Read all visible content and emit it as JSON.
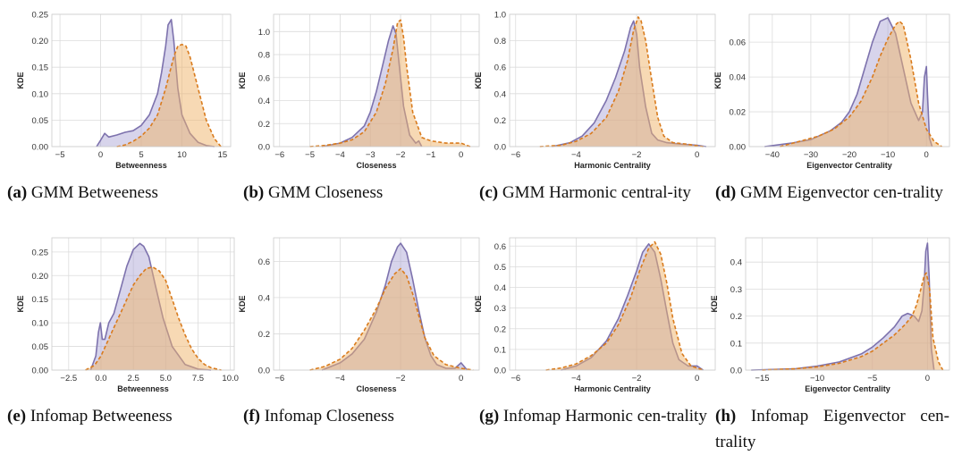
{
  "colors": {
    "series_a_line": "#7d72ad",
    "series_a_fill": "#a79fd3",
    "series_b_line": "#d97b1d",
    "series_b_fill": "#f0b46a",
    "grid": "#dcdcdc"
  },
  "captions": [
    {
      "tag": "(a)",
      "text": " GMM Betweeness"
    },
    {
      "tag": "(b)",
      "text": " GMM Closeness"
    },
    {
      "tag": "(c)",
      "text": " GMM Harmonic central-ity"
    },
    {
      "tag": "(d)",
      "text": " GMM Eigenvector cen-trality"
    },
    {
      "tag": "(e)",
      "text": " Infomap Betweeness"
    },
    {
      "tag": "(f)",
      "text": " Infomap Closeness"
    },
    {
      "tag": "(g)",
      "text": " Infomap Harmonic cen-trality"
    },
    {
      "tag": "(h)",
      "text": " Infomap Eigenvector cen-trality"
    }
  ],
  "chart_data": [
    {
      "type": "area",
      "xlabel": "Betweenness",
      "ylabel": "KDE",
      "xlim": [
        -6,
        16
      ],
      "ylim": [
        0,
        0.25
      ],
      "xticks": [
        -5,
        0,
        5,
        10,
        15
      ],
      "xticklabels": [
        "−5",
        "0",
        "5",
        "10",
        "15"
      ],
      "yticks": [
        0,
        0.05,
        0.1,
        0.15,
        0.2,
        0.25
      ],
      "yticklabels": [
        "0.00",
        "0.05",
        "0.10",
        "0.15",
        "0.20",
        "0.25"
      ],
      "series": [
        {
          "style": "solid",
          "x": [
            -0.5,
            0,
            0.5,
            1,
            2,
            3,
            4,
            5,
            6,
            7,
            7.5,
            8,
            8.3,
            8.7,
            9,
            9.5,
            10,
            11,
            12,
            13,
            14
          ],
          "y": [
            0,
            0.012,
            0.025,
            0.018,
            0.022,
            0.027,
            0.03,
            0.04,
            0.06,
            0.1,
            0.14,
            0.19,
            0.23,
            0.24,
            0.2,
            0.11,
            0.06,
            0.025,
            0.008,
            0.002,
            0
          ]
        },
        {
          "style": "dashed",
          "x": [
            2,
            3,
            4,
            5,
            6,
            7,
            8,
            9,
            9.5,
            10,
            10.5,
            11,
            12,
            13,
            14,
            14.8
          ],
          "y": [
            0,
            0.003,
            0.01,
            0.02,
            0.035,
            0.06,
            0.11,
            0.17,
            0.19,
            0.193,
            0.19,
            0.17,
            0.11,
            0.05,
            0.015,
            0
          ]
        }
      ]
    },
    {
      "type": "area",
      "xlabel": "Closeness",
      "ylabel": "KDE",
      "xlim": [
        -6.2,
        0.6
      ],
      "ylim": [
        0,
        1.15
      ],
      "xticks": [
        -6,
        -5,
        -4,
        -3,
        -2,
        -1,
        0
      ],
      "xticklabels": [
        "−6",
        "−5",
        "−4",
        "−3",
        "−2",
        "−1",
        "0"
      ],
      "yticks": [
        0,
        0.2,
        0.4,
        0.6,
        0.8,
        1.0
      ],
      "yticklabels": [
        "0.0",
        "0.2",
        "0.4",
        "0.6",
        "0.8",
        "1.0"
      ],
      "series": [
        {
          "style": "solid",
          "x": [
            -4.6,
            -4,
            -3.6,
            -3.2,
            -3,
            -2.8,
            -2.6,
            -2.4,
            -2.25,
            -2.15,
            -2.05,
            -1.9,
            -1.7,
            -1.5,
            -1.4,
            -1.3
          ],
          "y": [
            0,
            0.03,
            0.08,
            0.18,
            0.3,
            0.48,
            0.7,
            0.92,
            1.05,
            0.98,
            0.72,
            0.35,
            0.1,
            0.03,
            0.05,
            0
          ]
        },
        {
          "style": "dashed",
          "x": [
            -5,
            -4.5,
            -4,
            -3.6,
            -3.2,
            -2.8,
            -2.5,
            -2.25,
            -2.1,
            -2,
            -1.9,
            -1.8,
            -1.6,
            -1.3,
            -1,
            -0.5,
            0,
            0.3
          ],
          "y": [
            0,
            0.01,
            0.03,
            0.06,
            0.13,
            0.3,
            0.55,
            0.85,
            1.08,
            1.1,
            0.95,
            0.7,
            0.3,
            0.08,
            0.05,
            0.03,
            0.03,
            0
          ]
        }
      ]
    },
    {
      "type": "area",
      "xlabel": "Harmonic Centrality",
      "ylabel": "KDE",
      "xlim": [
        -6.2,
        0.6
      ],
      "ylim": [
        0,
        1.0
      ],
      "xticks": [
        -6,
        -4,
        -2,
        0
      ],
      "xticklabels": [
        "−6",
        "−4",
        "−2",
        "0"
      ],
      "yticks": [
        0,
        0.2,
        0.4,
        0.6,
        0.8,
        1.0
      ],
      "yticklabels": [
        "0.0",
        "0.2",
        "0.4",
        "0.6",
        "0.8",
        "1.0"
      ],
      "series": [
        {
          "style": "solid",
          "x": [
            -4.8,
            -4.2,
            -3.8,
            -3.4,
            -3,
            -2.7,
            -2.4,
            -2.2,
            -2.1,
            -2,
            -1.9,
            -1.7,
            -1.5,
            -1.3,
            -1,
            -0.6,
            0,
            0.3
          ],
          "y": [
            0,
            0.03,
            0.08,
            0.18,
            0.35,
            0.52,
            0.72,
            0.9,
            0.95,
            0.85,
            0.6,
            0.3,
            0.1,
            0.05,
            0.03,
            0.02,
            0.01,
            0
          ]
        },
        {
          "style": "dashed",
          "x": [
            -5.2,
            -4.5,
            -4,
            -3.5,
            -3,
            -2.6,
            -2.3,
            -2.1,
            -1.95,
            -1.85,
            -1.7,
            -1.5,
            -1.3,
            -1.1,
            -0.8,
            -0.4,
            0.2
          ],
          "y": [
            0,
            0.01,
            0.04,
            0.1,
            0.22,
            0.42,
            0.65,
            0.88,
            0.98,
            0.95,
            0.8,
            0.5,
            0.22,
            0.08,
            0.03,
            0.02,
            0
          ]
        }
      ]
    },
    {
      "type": "area",
      "xlabel": "Eigenvector Centrality",
      "ylabel": "KDE",
      "xlim": [
        -46,
        6
      ],
      "ylim": [
        0,
        0.076
      ],
      "xticks": [
        -40,
        -30,
        -20,
        -10,
        0
      ],
      "xticklabels": [
        "−40",
        "−30",
        "−20",
        "−10",
        "0"
      ],
      "yticks": [
        0,
        0.02,
        0.04,
        0.06
      ],
      "yticklabels": [
        "0.00",
        "0.02",
        "0.04",
        "0.06"
      ],
      "series": [
        {
          "style": "solid",
          "x": [
            -42,
            -35,
            -30,
            -25,
            -22,
            -20,
            -18,
            -16,
            -14,
            -12,
            -10,
            -8,
            -6,
            -4,
            -2,
            -1,
            -0.5,
            0,
            0.3,
            0.8,
            1.5
          ],
          "y": [
            0,
            0.002,
            0.004,
            0.009,
            0.014,
            0.02,
            0.03,
            0.045,
            0.06,
            0.072,
            0.074,
            0.065,
            0.045,
            0.025,
            0.015,
            0.02,
            0.04,
            0.046,
            0.03,
            0.005,
            0
          ]
        },
        {
          "style": "dashed",
          "x": [
            -38,
            -33,
            -28,
            -24,
            -20,
            -17,
            -14,
            -12,
            -10,
            -8,
            -7,
            -6,
            -4,
            -2,
            0,
            2,
            4
          ],
          "y": [
            0,
            0.003,
            0.006,
            0.01,
            0.017,
            0.026,
            0.04,
            0.052,
            0.062,
            0.07,
            0.072,
            0.07,
            0.05,
            0.025,
            0.01,
            0.003,
            0
          ]
        }
      ]
    },
    {
      "type": "area",
      "xlabel": "Betweenness",
      "ylabel": "KDE",
      "xlim": [
        -3.8,
        10.3
      ],
      "ylim": [
        0,
        0.28
      ],
      "xticks": [
        -2.5,
        0,
        2.5,
        5,
        7.5,
        10
      ],
      "xticklabels": [
        "−2.5",
        "0.0",
        "2.5",
        "5.0",
        "7.5",
        "10.0"
      ],
      "yticks": [
        0,
        0.05,
        0.1,
        0.15,
        0.2,
        0.25
      ],
      "yticklabels": [
        "0.00",
        "0.05",
        "0.10",
        "0.15",
        "0.20",
        "0.25"
      ],
      "series": [
        {
          "style": "solid",
          "x": [
            -0.8,
            -0.4,
            -0.2,
            -0.05,
            0.1,
            0.3,
            0.6,
            1,
            1.5,
            2,
            2.5,
            3,
            3.3,
            3.7,
            4.2,
            4.8,
            5.5,
            6.5,
            7.5,
            8.5
          ],
          "y": [
            0,
            0.03,
            0.08,
            0.1,
            0.065,
            0.065,
            0.1,
            0.12,
            0.17,
            0.22,
            0.255,
            0.268,
            0.262,
            0.24,
            0.18,
            0.11,
            0.05,
            0.012,
            0.002,
            0
          ]
        },
        {
          "style": "dashed",
          "x": [
            -1.2,
            -0.5,
            0,
            0.5,
            1,
            1.5,
            2,
            2.5,
            3,
            3.5,
            4,
            4.5,
            5,
            5.5,
            6,
            6.5,
            7,
            7.5,
            8,
            8.5,
            9.3
          ],
          "y": [
            0,
            0.01,
            0.03,
            0.06,
            0.09,
            0.12,
            0.15,
            0.18,
            0.2,
            0.215,
            0.218,
            0.21,
            0.19,
            0.15,
            0.11,
            0.075,
            0.045,
            0.025,
            0.012,
            0.005,
            0
          ]
        }
      ]
    },
    {
      "type": "area",
      "xlabel": "Closeness",
      "ylabel": "KDE",
      "xlim": [
        -6.2,
        0.6
      ],
      "ylim": [
        0,
        0.73
      ],
      "xticks": [
        -6,
        -4,
        -2,
        0
      ],
      "xticklabels": [
        "−6",
        "−4",
        "−2",
        "0"
      ],
      "yticks": [
        0,
        0.2,
        0.4,
        0.6
      ],
      "yticklabels": [
        "0.0",
        "0.2",
        "0.4",
        "0.6"
      ],
      "series": [
        {
          "style": "solid",
          "x": [
            -4.6,
            -4,
            -3.6,
            -3.2,
            -2.8,
            -2.5,
            -2.3,
            -2.1,
            -2,
            -1.8,
            -1.6,
            -1.4,
            -1.2,
            -1,
            -0.8,
            -0.5,
            -0.2,
            0,
            0.2
          ],
          "y": [
            0,
            0.04,
            0.09,
            0.17,
            0.32,
            0.47,
            0.6,
            0.68,
            0.7,
            0.65,
            0.5,
            0.33,
            0.18,
            0.08,
            0.03,
            0.01,
            0.01,
            0.04,
            0
          ]
        },
        {
          "style": "dashed",
          "x": [
            -5,
            -4.5,
            -4,
            -3.6,
            -3.2,
            -2.8,
            -2.5,
            -2.2,
            -2,
            -1.8,
            -1.6,
            -1.4,
            -1.2,
            -0.9,
            -0.5,
            0,
            0.4
          ],
          "y": [
            0,
            0.02,
            0.06,
            0.12,
            0.22,
            0.34,
            0.45,
            0.53,
            0.56,
            0.52,
            0.42,
            0.3,
            0.18,
            0.08,
            0.03,
            0.01,
            0
          ]
        }
      ]
    },
    {
      "type": "area",
      "xlabel": "Harmonic Centrality",
      "ylabel": "KDE",
      "xlim": [
        -6.2,
        0.6
      ],
      "ylim": [
        0,
        0.64
      ],
      "xticks": [
        -6,
        -4,
        -2,
        0
      ],
      "xticklabels": [
        "−6",
        "−4",
        "−2",
        "0"
      ],
      "yticks": [
        0,
        0.1,
        0.2,
        0.3,
        0.4,
        0.5,
        0.6
      ],
      "yticklabels": [
        "0.0",
        "0.1",
        "0.2",
        "0.3",
        "0.4",
        "0.5",
        "0.6"
      ],
      "series": [
        {
          "style": "solid",
          "x": [
            -4.5,
            -4,
            -3.5,
            -3,
            -2.6,
            -2.3,
            -2,
            -1.8,
            -1.6,
            -1.4,
            -1.2,
            -1,
            -0.8,
            -0.6,
            -0.3,
            0,
            0.2
          ],
          "y": [
            0,
            0.02,
            0.06,
            0.14,
            0.25,
            0.36,
            0.48,
            0.57,
            0.61,
            0.57,
            0.44,
            0.28,
            0.13,
            0.05,
            0.02,
            0.02,
            0
          ]
        },
        {
          "style": "dashed",
          "x": [
            -5,
            -4.5,
            -4,
            -3.5,
            -3,
            -2.6,
            -2.2,
            -1.9,
            -1.6,
            -1.4,
            -1.2,
            -1,
            -0.8,
            -0.5,
            -0.2,
            0.2
          ],
          "y": [
            0,
            0.01,
            0.03,
            0.07,
            0.13,
            0.22,
            0.35,
            0.48,
            0.59,
            0.62,
            0.56,
            0.42,
            0.25,
            0.08,
            0.02,
            0
          ]
        }
      ]
    },
    {
      "type": "area",
      "xlabel": "Eigenvector Centrality",
      "ylabel": "KDE",
      "xlim": [
        -16.5,
        2
      ],
      "ylim": [
        0,
        0.49
      ],
      "xticks": [
        -15,
        -10,
        -5,
        0
      ],
      "xticklabels": [
        "−15",
        "−10",
        "−5",
        "0"
      ],
      "yticks": [
        0,
        0.1,
        0.2,
        0.3,
        0.4
      ],
      "yticklabels": [
        "0.0",
        "0.1",
        "0.2",
        "0.3",
        "0.4"
      ],
      "series": [
        {
          "style": "solid",
          "x": [
            -16,
            -12,
            -10,
            -8,
            -6,
            -5,
            -4,
            -3,
            -2.3,
            -1.8,
            -1.2,
            -0.8,
            -0.5,
            -0.3,
            -0.15,
            0,
            0.15,
            0.35,
            0.6
          ],
          "y": [
            0,
            0.005,
            0.015,
            0.03,
            0.06,
            0.085,
            0.12,
            0.16,
            0.2,
            0.21,
            0.2,
            0.18,
            0.22,
            0.32,
            0.44,
            0.47,
            0.35,
            0.08,
            0
          ]
        },
        {
          "style": "dashed",
          "x": [
            -15,
            -12,
            -10,
            -8,
            -6,
            -5,
            -4,
            -3,
            -2,
            -1.4,
            -1,
            -0.6,
            -0.3,
            -0.1,
            0.2,
            0.5,
            1,
            1.4
          ],
          "y": [
            0,
            0.005,
            0.012,
            0.025,
            0.05,
            0.07,
            0.1,
            0.13,
            0.17,
            0.2,
            0.24,
            0.3,
            0.35,
            0.36,
            0.3,
            0.12,
            0.03,
            0
          ]
        }
      ]
    }
  ]
}
